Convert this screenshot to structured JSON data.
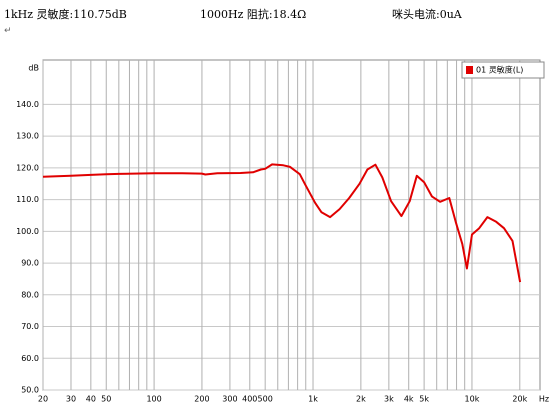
{
  "header": {
    "sensitivity": "1kHz 灵敏度:110.75dB",
    "impedance": "1000Hz 阻抗:18.4Ω",
    "mic_current": "咪头电流:0uA",
    "mark": "↵"
  },
  "chart_data": {
    "type": "line",
    "x_label": "Hz",
    "y_label": "dB",
    "log_x": true,
    "grid": true,
    "legend": "top-right",
    "xlim": [
      20,
      26800
    ],
    "ylim": [
      50,
      154
    ],
    "xticks": [
      20,
      30,
      40,
      50,
      100,
      200,
      300,
      400,
      500,
      {
        "value": 1000,
        "label": "1k"
      },
      {
        "value": 2000,
        "label": "2k"
      },
      {
        "value": 3000,
        "label": "3k"
      },
      {
        "value": 4000,
        "label": "4k"
      },
      {
        "value": 5000,
        "label": "5k"
      },
      {
        "value": 10000,
        "label": "10k"
      },
      {
        "value": 20000,
        "label": "20k"
      }
    ],
    "xminor": [
      60,
      70,
      80,
      90,
      600,
      700,
      800,
      900,
      6000,
      7000,
      8000,
      9000
    ],
    "yticks": [
      {
        "value": 50,
        "label": "50.0"
      },
      {
        "value": 60,
        "label": "60.0"
      },
      {
        "value": 70,
        "label": "70.0"
      },
      {
        "value": 80,
        "label": "80.0"
      },
      {
        "value": 90,
        "label": "90.0"
      },
      {
        "value": 100,
        "label": "100.0"
      },
      {
        "value": 110,
        "label": "110.0"
      },
      {
        "value": 120,
        "label": "120.0"
      },
      {
        "value": 130,
        "label": "130.0"
      },
      {
        "value": 140,
        "label": "140.0"
      }
    ],
    "x": [
      20,
      30,
      40,
      50,
      60,
      100,
      150,
      200,
      210,
      250,
      350,
      420,
      470,
      500,
      553,
      650,
      717,
      826,
      888,
      1030,
      1130,
      1280,
      1470,
      1690,
      1960,
      2200,
      2470,
      2730,
      3100,
      3600,
      4060,
      4500,
      5000,
      5600,
      6300,
      7200,
      7900,
      8700,
      9300,
      10000,
      11100,
      12500,
      14200,
      15900,
      18000,
      20100
    ],
    "series": [
      {
        "name": "01 灵敏度(L)",
        "color": "#e00000",
        "values": [
          117.2,
          117.5,
          117.8,
          118,
          118.1,
          118.3,
          118.3,
          118.2,
          117.9,
          118.3,
          118.4,
          118.6,
          119.5,
          119.7,
          121.1,
          120.8,
          120.3,
          118,
          115,
          109,
          106,
          104.5,
          107,
          110.5,
          115,
          119.5,
          121,
          117,
          109.5,
          104.8,
          109.5,
          117.5,
          115.5,
          111,
          109.3,
          110.5,
          103,
          96,
          88.3,
          99,
          101,
          104.5,
          103,
          101,
          97,
          84
        ]
      }
    ]
  }
}
